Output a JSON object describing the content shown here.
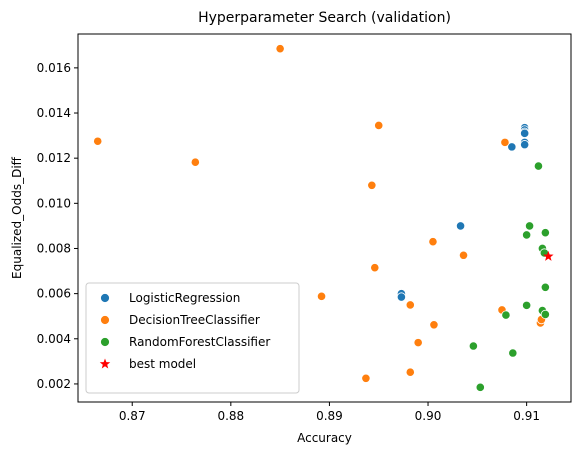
{
  "chart_data": {
    "type": "scatter",
    "title": "Hyperparameter Search (validation)",
    "xlabel": "Accuracy",
    "ylabel": "Equalized_Odds_Diff",
    "xlim": [
      0.8645,
      0.9145
    ],
    "ylim": [
      0.0012,
      0.0175
    ],
    "xticks": [
      0.87,
      0.88,
      0.89,
      0.9,
      0.91
    ],
    "xtick_labels": [
      "0.87",
      "0.88",
      "0.89",
      "0.90",
      "0.91"
    ],
    "yticks": [
      0.002,
      0.004,
      0.006,
      0.008,
      0.01,
      0.012,
      0.014,
      0.016
    ],
    "ytick_labels": [
      "0.002",
      "0.004",
      "0.006",
      "0.008",
      "0.010",
      "0.012",
      "0.014",
      "0.016"
    ],
    "grid": false,
    "legend_position": "lower-left",
    "series": [
      {
        "name": "LogisticRegression",
        "color": "#1f77b4",
        "marker": "circle",
        "points": [
          [
            0.9098,
            0.01335
          ],
          [
            0.9098,
            0.01325
          ],
          [
            0.9098,
            0.01315
          ],
          [
            0.9098,
            0.0131
          ],
          [
            0.9098,
            0.0127
          ],
          [
            0.9098,
            0.0126
          ],
          [
            0.9085,
            0.0125
          ],
          [
            0.9033,
            0.009
          ],
          [
            0.8973,
            0.006
          ],
          [
            0.8973,
            0.00585
          ]
        ]
      },
      {
        "name": "DecisionTreeClassifier",
        "color": "#ff7f0e",
        "marker": "circle",
        "points": [
          [
            0.885,
            0.01685
          ],
          [
            0.8665,
            0.01275
          ],
          [
            0.8764,
            0.01182
          ],
          [
            0.895,
            0.01345
          ],
          [
            0.8943,
            0.0108
          ],
          [
            0.8946,
            0.00715
          ],
          [
            0.8892,
            0.00588
          ],
          [
            0.8937,
            0.00225
          ],
          [
            0.8982,
            0.00252
          ],
          [
            0.8982,
            0.0055
          ],
          [
            0.899,
            0.00383
          ],
          [
            0.9005,
            0.0083
          ],
          [
            0.9006,
            0.00462
          ],
          [
            0.9036,
            0.0077
          ],
          [
            0.9078,
            0.0127
          ],
          [
            0.9075,
            0.00528
          ],
          [
            0.9114,
            0.0047
          ],
          [
            0.9115,
            0.00485
          ]
        ]
      },
      {
        "name": "RandomForestClassifier",
        "color": "#2ca02c",
        "marker": "circle",
        "points": [
          [
            0.9112,
            0.01165
          ],
          [
            0.9103,
            0.009
          ],
          [
            0.9119,
            0.0087
          ],
          [
            0.91,
            0.0086
          ],
          [
            0.9116,
            0.008
          ],
          [
            0.9118,
            0.0078
          ],
          [
            0.9119,
            0.00628
          ],
          [
            0.91,
            0.00548
          ],
          [
            0.9116,
            0.00525
          ],
          [
            0.9119,
            0.00508
          ],
          [
            0.9079,
            0.00505
          ],
          [
            0.9046,
            0.00368
          ],
          [
            0.9086,
            0.00337
          ],
          [
            0.9053,
            0.00185
          ]
        ]
      },
      {
        "name": "best model",
        "color": "#ff0000",
        "marker": "star",
        "points": [
          [
            0.9122,
            0.00765
          ]
        ]
      }
    ]
  }
}
